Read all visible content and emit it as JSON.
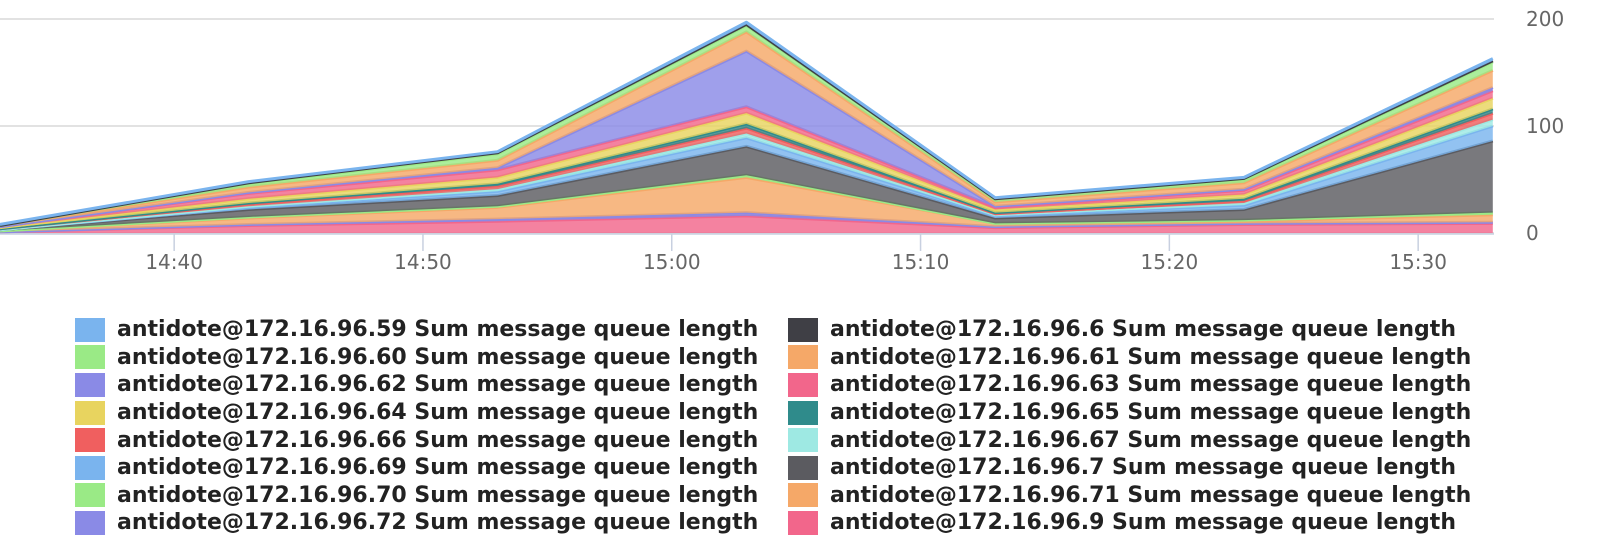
{
  "chart_data": {
    "type": "area",
    "stacked": true,
    "x": [
      "14:33",
      "14:43",
      "14:53",
      "15:03",
      "15:13",
      "15:23",
      "15:33"
    ],
    "x_ticks": [
      "14:40",
      "14:50",
      "15:00",
      "15:10",
      "15:20",
      "15:30"
    ],
    "y_ticks": [
      0,
      100,
      200
    ],
    "ylim": [
      0,
      210
    ],
    "grid": true,
    "legend_position": "bottom",
    "series": [
      {
        "name": "antidote@172.16.96.9 Sum message queue length",
        "color": "#f2668b",
        "values": [
          1,
          7,
          11,
          16,
          5,
          8,
          9
        ]
      },
      {
        "name": "antidote@172.16.96.72 Sum message queue length",
        "color": "#8a8ae6",
        "values": [
          0,
          1,
          2,
          3,
          1,
          1,
          1
        ]
      },
      {
        "name": "antidote@172.16.96.71 Sum message queue length",
        "color": "#f5a868",
        "values": [
          1,
          6,
          11,
          33,
          3,
          2,
          7
        ]
      },
      {
        "name": "antidote@172.16.96.70 Sum message queue length",
        "color": "#9aea86",
        "values": [
          0,
          1,
          1,
          2,
          0,
          1,
          2
        ]
      },
      {
        "name": "antidote@172.16.96.7 Sum message queue length",
        "color": "#5b5b60",
        "values": [
          1,
          7,
          10,
          27,
          5,
          10,
          67
        ]
      },
      {
        "name": "antidote@172.16.96.69 Sum message queue length",
        "color": "#7ab4ee",
        "values": [
          0,
          2,
          4,
          8,
          2,
          4,
          14
        ]
      },
      {
        "name": "antidote@172.16.96.67 Sum message queue length",
        "color": "#9ee9e3",
        "values": [
          0,
          1,
          2,
          4,
          1,
          2,
          6
        ]
      },
      {
        "name": "antidote@172.16.96.66 Sum message queue length",
        "color": "#f05f5f",
        "values": [
          1,
          2,
          3,
          5,
          1,
          2,
          6
        ]
      },
      {
        "name": "antidote@172.16.96.65 Sum message queue length",
        "color": "#2f8b8b",
        "values": [
          0,
          1,
          2,
          4,
          1,
          2,
          4
        ]
      },
      {
        "name": "antidote@172.16.96.64 Sum message queue length",
        "color": "#e8d45f",
        "values": [
          1,
          4,
          6,
          10,
          3,
          4,
          10
        ]
      },
      {
        "name": "antidote@172.16.96.63 Sum message queue length",
        "color": "#f2668b",
        "values": [
          1,
          5,
          7,
          6,
          2,
          4,
          7
        ]
      },
      {
        "name": "antidote@172.16.96.62 Sum message queue length",
        "color": "#8a8ae6",
        "values": [
          0,
          1,
          2,
          52,
          1,
          1,
          3
        ]
      },
      {
        "name": "antidote@172.16.96.61 Sum message queue length",
        "color": "#f5a868",
        "values": [
          1,
          5,
          7,
          18,
          4,
          6,
          16
        ]
      },
      {
        "name": "antidote@172.16.96.60 Sum message queue length",
        "color": "#9aea86",
        "values": [
          0,
          3,
          6,
          6,
          3,
          3,
          8
        ]
      },
      {
        "name": "antidote@172.16.96.6 Sum message queue length",
        "color": "#3f3f45",
        "values": [
          0,
          1,
          1,
          1,
          0,
          1,
          1
        ]
      },
      {
        "name": "antidote@172.16.96.59 Sum message queue length",
        "color": "#7ab4ee",
        "values": [
          1,
          1,
          1,
          2,
          1,
          1,
          2
        ]
      }
    ]
  },
  "legend_order": [
    "antidote@172.16.96.59 Sum message queue length",
    "antidote@172.16.96.6 Sum message queue length",
    "antidote@172.16.96.60 Sum message queue length",
    "antidote@172.16.96.61 Sum message queue length",
    "antidote@172.16.96.62 Sum message queue length",
    "antidote@172.16.96.63 Sum message queue length",
    "antidote@172.16.96.64 Sum message queue length",
    "antidote@172.16.96.65 Sum message queue length",
    "antidote@172.16.96.66 Sum message queue length",
    "antidote@172.16.96.67 Sum message queue length",
    "antidote@172.16.96.69 Sum message queue length",
    "antidote@172.16.96.7 Sum message queue length",
    "antidote@172.16.96.70 Sum message queue length",
    "antidote@172.16.96.71 Sum message queue length",
    "antidote@172.16.96.72 Sum message queue length",
    "antidote@172.16.96.9 Sum message queue length"
  ]
}
